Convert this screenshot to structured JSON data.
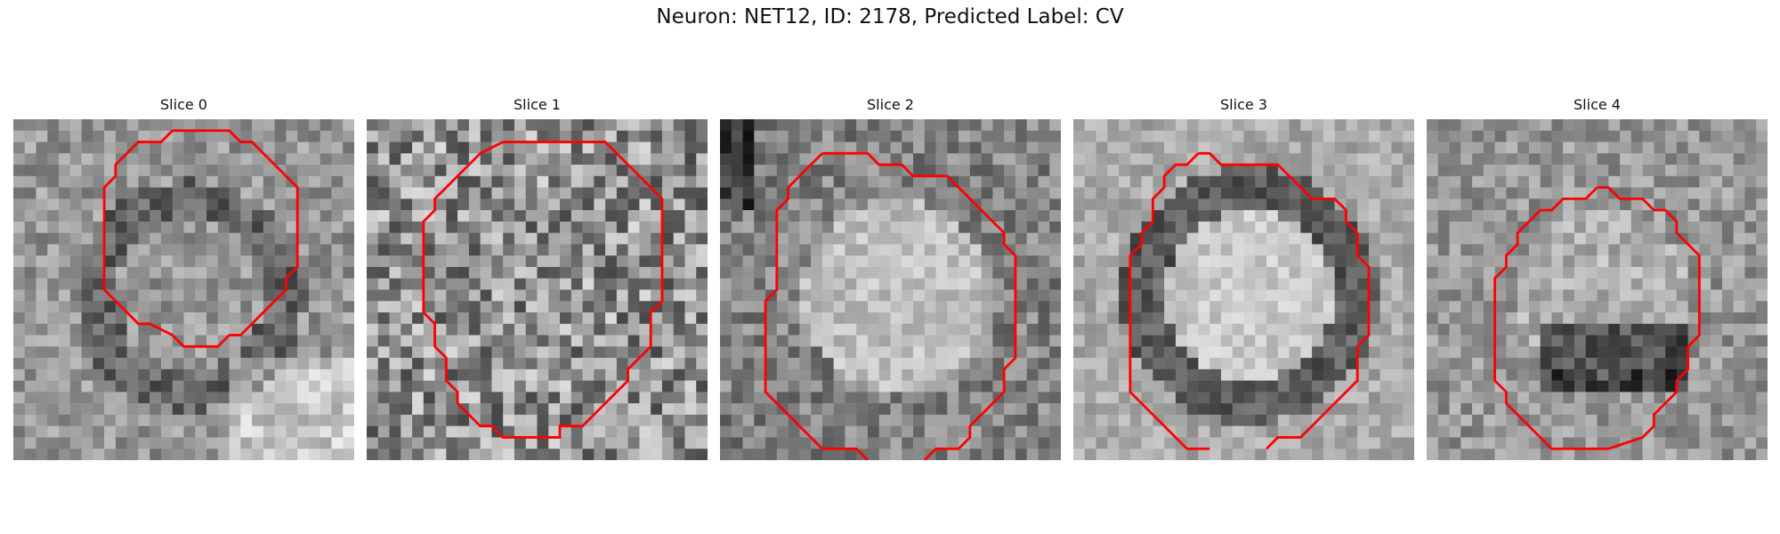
{
  "figure": {
    "title": "Neuron: NET12, ID: 2178, Predicted Label: CV",
    "contour_color": "#ff0000"
  },
  "panels": [
    {
      "label": "Slice 0",
      "seed": 11,
      "bias": "donut-upper"
    },
    {
      "label": "Slice 1",
      "seed": 23,
      "bias": "noise"
    },
    {
      "label": "Slice 2",
      "seed": 37,
      "bias": "bright-center"
    },
    {
      "label": "Slice 3",
      "seed": 41,
      "bias": "dark-ring"
    },
    {
      "label": "Slice 4",
      "seed": 53,
      "bias": "dark-lower-ring"
    }
  ]
}
